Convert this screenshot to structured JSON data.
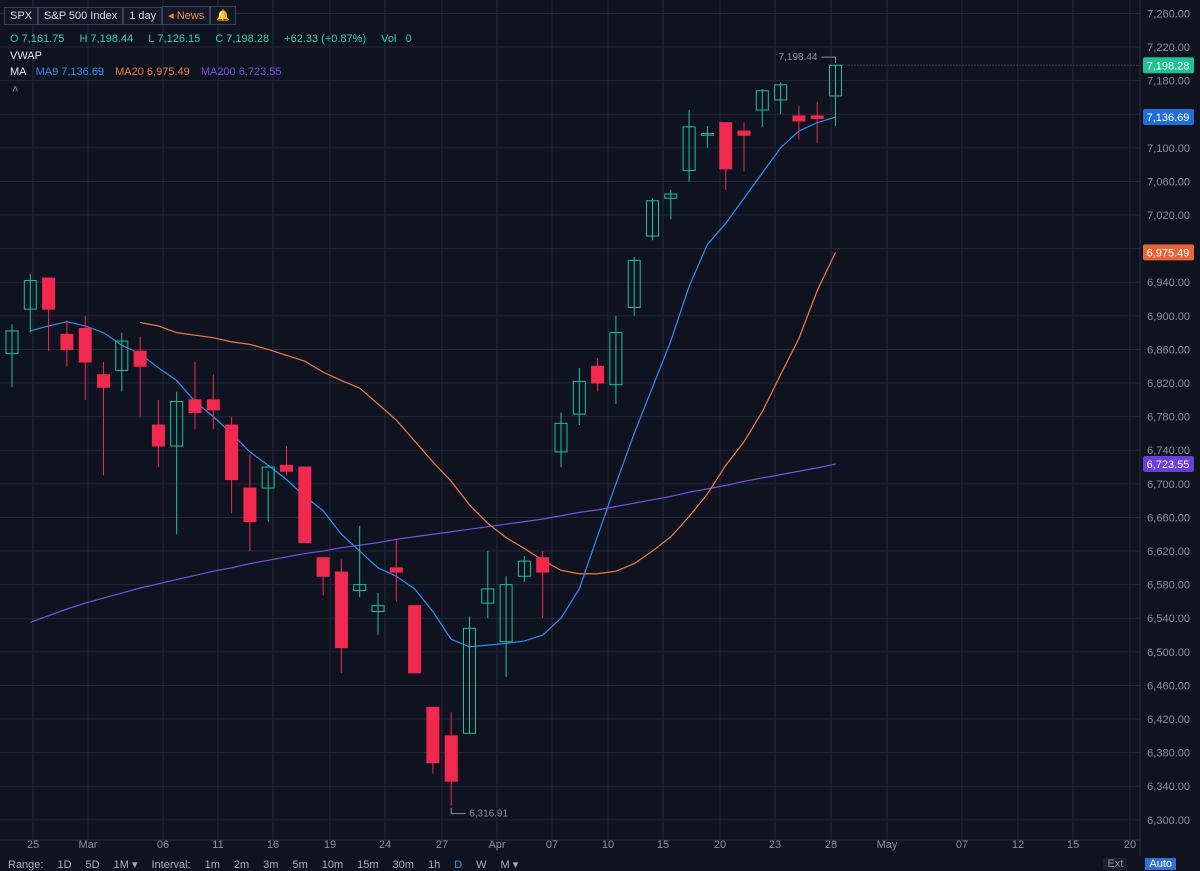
{
  "header": {
    "symbol": "SPX",
    "name": "S&P 500 Index",
    "interval": "1 day",
    "news": "News",
    "open": "7,161.75",
    "high": "7,198.44",
    "low": "7,126.15",
    "close": "7,198.28",
    "change": "+62.33 (+0.87%)",
    "vol_label": "Vol",
    "vol": "0",
    "vwap": "VWAP",
    "ma_label": "MA",
    "ma9": "MA9 7,136.69",
    "ma20": "MA20 6,975.49",
    "ma200": "MA200 6,723.55"
  },
  "bottom": {
    "range_label": "Range:",
    "ranges": [
      "1D",
      "5D",
      "1M ▾"
    ],
    "interval_label": "Interval:",
    "intervals": [
      "1m",
      "2m",
      "3m",
      "5m",
      "10m",
      "15m",
      "30m",
      "1h",
      "D",
      "W",
      "M ▾"
    ],
    "ext": "Ext",
    "auto": "Auto"
  },
  "chart_data": {
    "type": "candlestick",
    "y_ticks": [
      6300,
      6340,
      6380,
      6420,
      6460,
      6500,
      6540,
      6580,
      6620,
      6660,
      6700,
      6740,
      6780,
      6820,
      6860,
      6900,
      6940,
      6980,
      7020,
      7060,
      7100,
      7140,
      7180,
      7220,
      7260
    ],
    "ylim": [
      6276,
      7276
    ],
    "x_ticks": [
      "25",
      "Mar",
      "06",
      "11",
      "16",
      "19",
      "24",
      "27",
      "Apr",
      "07",
      "10",
      "15",
      "20",
      "23",
      "28",
      "May",
      "07",
      "12",
      "15",
      "20"
    ],
    "last_price_labels": [
      {
        "value": "7,198.28",
        "color": "#1ec293"
      },
      {
        "value": "7,136.69",
        "color": "#1f6fd8"
      },
      {
        "value": "6,975.49",
        "color": "#e8633a"
      },
      {
        "value": "6,723.55",
        "color": "#6a3fd8"
      }
    ],
    "high_annotation": "7,198.44",
    "low_annotation": "6,316.91",
    "candles": [
      [
        6855,
        6890,
        6815,
        6882
      ],
      [
        6908,
        6950,
        6880,
        6942
      ],
      [
        6945,
        6940,
        6858,
        6908
      ],
      [
        6878,
        6895,
        6840,
        6860
      ],
      [
        6885,
        6900,
        6800,
        6845
      ],
      [
        6830,
        6845,
        6710,
        6815
      ],
      [
        6835,
        6880,
        6810,
        6870
      ],
      [
        6858,
        6875,
        6780,
        6840
      ],
      [
        6770,
        6800,
        6720,
        6745
      ],
      [
        6745,
        6810,
        6640,
        6798
      ],
      [
        6800,
        6845,
        6765,
        6785
      ],
      [
        6800,
        6830,
        6765,
        6788
      ],
      [
        6770,
        6780,
        6665,
        6705
      ],
      [
        6695,
        6735,
        6620,
        6655
      ],
      [
        6695,
        6715,
        6655,
        6720
      ],
      [
        6722,
        6745,
        6710,
        6715
      ],
      [
        6720,
        6720,
        6630,
        6630
      ],
      [
        6612,
        6610,
        6567,
        6590
      ],
      [
        6595,
        6610,
        6475,
        6505
      ],
      [
        6573,
        6650,
        6565,
        6580
      ],
      [
        6548,
        6570,
        6520,
        6555
      ],
      [
        6600,
        6635,
        6560,
        6595
      ],
      [
        6555,
        6555,
        6475,
        6475
      ],
      [
        6434,
        6425,
        6355,
        6368
      ],
      [
        6400,
        6428,
        6316.91,
        6346
      ],
      [
        6403,
        6542,
        6403,
        6528
      ],
      [
        6558,
        6620,
        6540,
        6575
      ],
      [
        6512,
        6590,
        6470,
        6580
      ],
      [
        6590,
        6614,
        6583,
        6608
      ],
      [
        6612,
        6620,
        6540,
        6595
      ],
      [
        6738,
        6785,
        6720,
        6772
      ],
      [
        6783,
        6838,
        6770,
        6822
      ],
      [
        6840,
        6850,
        6810,
        6820
      ],
      [
        6818,
        6900,
        6795,
        6880
      ],
      [
        6910,
        6970,
        6900,
        6966
      ],
      [
        6995,
        7040,
        6990,
        7037
      ],
      [
        7040,
        7050,
        7015,
        7045
      ],
      [
        7073,
        7145,
        7060,
        7125
      ],
      [
        7115,
        7126,
        7100,
        7117
      ],
      [
        7130,
        7125,
        7050,
        7075
      ],
      [
        7120,
        7130,
        7072,
        7115
      ],
      [
        7145,
        7170,
        7125,
        7168
      ],
      [
        7157,
        7178,
        7140,
        7175
      ],
      [
        7138,
        7150,
        7110,
        7132
      ],
      [
        7138,
        7155,
        7106,
        7135
      ],
      [
        7161.75,
        7198.44,
        7126.15,
        7198.28
      ]
    ],
    "ma9": [
      6882,
      6888,
      6893,
      6888,
      6880,
      6865,
      6855,
      6838,
      6823,
      6798,
      6780,
      6760,
      6738,
      6722,
      6705,
      6685,
      6668,
      6640,
      6620,
      6600,
      6590,
      6575,
      6548,
      6515,
      6506,
      6508,
      6510,
      6513,
      6520,
      6540,
      6575,
      6638,
      6700,
      6760,
      6815,
      6870,
      6935,
      6985,
      7010,
      7040,
      7070,
      7100,
      7120,
      7130,
      7136.69
    ],
    "ma20": [
      6892,
      6888,
      6880,
      6877,
      6874,
      6869,
      6866,
      6860,
      6853,
      6846,
      6833,
      6823,
      6814,
      6795,
      6776,
      6751,
      6726,
      6703,
      6675,
      6653,
      6636,
      6623,
      6609,
      6597,
      6593,
      6593,
      6596,
      6605,
      6620,
      6637,
      6661,
      6688,
      6722,
      6750,
      6786,
      6830,
      6873,
      6930,
      6975.49
    ],
    "ma200": [
      6535,
      6543,
      6551,
      6558,
      6564,
      6570,
      6576,
      6581,
      6586,
      6591,
      6596,
      6600,
      6605,
      6609,
      6613,
      6617,
      6620,
      6624,
      6627,
      6630,
      6634,
      6637,
      6640,
      6643,
      6646,
      6649,
      6652,
      6655,
      6658,
      6662,
      6666,
      6669,
      6673,
      6677,
      6681,
      6685,
      6690,
      6694,
      6698,
      6703,
      6707,
      6711,
      6715,
      6719,
      6723.55
    ],
    "colors": {
      "up": "#1ec293",
      "down": "#f2294f",
      "ma9": "#2f8ef5",
      "ma20": "#f07a4a",
      "ma200": "#7b4fe0",
      "grid": "#22283a",
      "axis": "#8a90a0"
    }
  }
}
